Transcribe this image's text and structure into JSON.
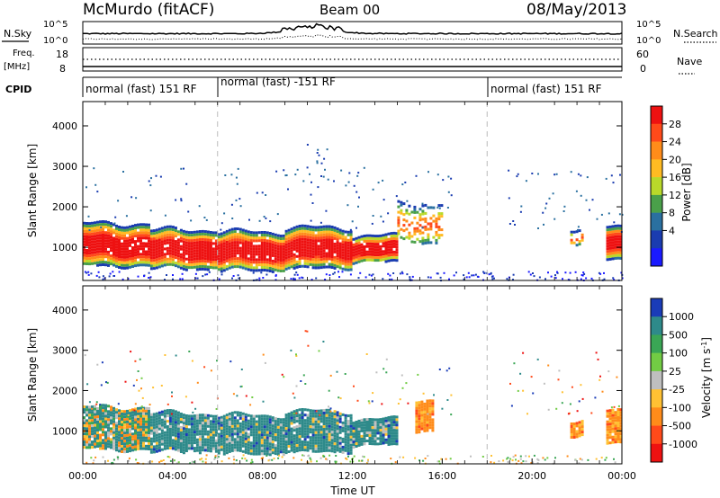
{
  "header": {
    "station": "McMurdo (fitACF)",
    "beam": "Beam 00",
    "date": "08/May/2013"
  },
  "top_panels": {
    "nsky_label": "N.Sky",
    "nsearch_label": "N.Search",
    "noise_ticks_left": [
      "10^5",
      "10^0"
    ],
    "noise_ticks_right": [
      "10^5",
      "10^0"
    ],
    "freq_label": "Freq.",
    "freq_unit": "[MHz]",
    "freq_ticks": [
      "18",
      "8"
    ],
    "nave_label": "Nave",
    "nave_ticks": [
      "60",
      "0"
    ],
    "cpid_label": "CPID",
    "cpid_segments": [
      {
        "label": "normal (fast) 151 RF",
        "start_hour": 0
      },
      {
        "label": "normal (fast) -151 RF",
        "start_hour": 6
      },
      {
        "label": "normal (fast) 151 RF",
        "start_hour": 18
      }
    ]
  },
  "power_colorbar": {
    "title": "Power [dB]",
    "ticks": [
      "28",
      "24",
      "20",
      "16",
      "12",
      "8",
      "4"
    ],
    "colors": [
      "#ee1111",
      "#ff4a1a",
      "#ff8c1a",
      "#ffbb22",
      "#b9d92a",
      "#4aa04a",
      "#2a70a0",
      "#1a3cb0",
      "#1a1aff"
    ]
  },
  "velocity_colorbar": {
    "title_main": "Velocity [m s",
    "title_sup": "-1",
    "title_end": "]",
    "ticks": [
      "1000",
      "500",
      "100",
      "25",
      "-25",
      "-100",
      "-500",
      "-1000"
    ],
    "colors": [
      "#1a3cb8",
      "#2e8a8a",
      "#3aa655",
      "#72cc44",
      "#bfbfbf",
      "#ffc133",
      "#ff8c1a",
      "#ff4a1a",
      "#ee1111"
    ]
  },
  "chart_data": [
    {
      "type": "heatmap",
      "name": "power",
      "ylabel": "Slant Range [km]",
      "yticks": [
        1000,
        2000,
        3000,
        4000
      ],
      "ylim": [
        180,
        4600
      ],
      "xlim": [
        0,
        24
      ],
      "bands": [
        {
          "t0": 0,
          "t1": 3,
          "r0": 550,
          "r1": 1600,
          "level": "strong"
        },
        {
          "t0": 3,
          "t1": 6,
          "r0": 500,
          "r1": 1450,
          "level": "strong"
        },
        {
          "t0": 6,
          "t1": 9,
          "r0": 450,
          "r1": 1400,
          "level": "strong"
        },
        {
          "t0": 9,
          "t1": 12,
          "r0": 500,
          "r1": 1500,
          "level": "strong"
        },
        {
          "t0": 12,
          "t1": 14,
          "r0": 650,
          "r1": 1300,
          "level": "strong"
        },
        {
          "t0": 14,
          "t1": 16,
          "r0": 1100,
          "r1": 2100,
          "level": "weak"
        },
        {
          "t0": 21.7,
          "t1": 22.2,
          "r0": 1100,
          "r1": 1500,
          "level": "weak"
        },
        {
          "t0": 23.3,
          "t1": 24,
          "r0": 700,
          "r1": 1500,
          "level": "strong"
        }
      ]
    },
    {
      "type": "heatmap",
      "name": "velocity",
      "ylabel": "Slant Range [km]",
      "yticks": [
        1000,
        2000,
        3000,
        4000
      ],
      "ylim": [
        180,
        4600
      ],
      "xlim": [
        0,
        24
      ],
      "xticks": [
        "00:00",
        "04:00",
        "08:00",
        "12:00",
        "16:00",
        "20:00",
        "00:00"
      ],
      "xlabel": "Time UT",
      "bands": [
        {
          "t0": 0,
          "t1": 3,
          "r0": 550,
          "r1": 1600,
          "level": "mixed"
        },
        {
          "t0": 3,
          "t1": 6,
          "r0": 500,
          "r1": 1450,
          "level": "green"
        },
        {
          "t0": 6,
          "t1": 9,
          "r0": 450,
          "r1": 1400,
          "level": "green"
        },
        {
          "t0": 9,
          "t1": 12,
          "r0": 500,
          "r1": 1500,
          "level": "green"
        },
        {
          "t0": 12,
          "t1": 14,
          "r0": 650,
          "r1": 1300,
          "level": "green"
        },
        {
          "t0": 14.8,
          "t1": 15.6,
          "r0": 1000,
          "r1": 1800,
          "level": "orange"
        },
        {
          "t0": 21.7,
          "t1": 22.2,
          "r0": 900,
          "r1": 1300,
          "level": "orange"
        },
        {
          "t0": 23.3,
          "t1": 24,
          "r0": 700,
          "r1": 1500,
          "level": "orange"
        }
      ]
    }
  ]
}
